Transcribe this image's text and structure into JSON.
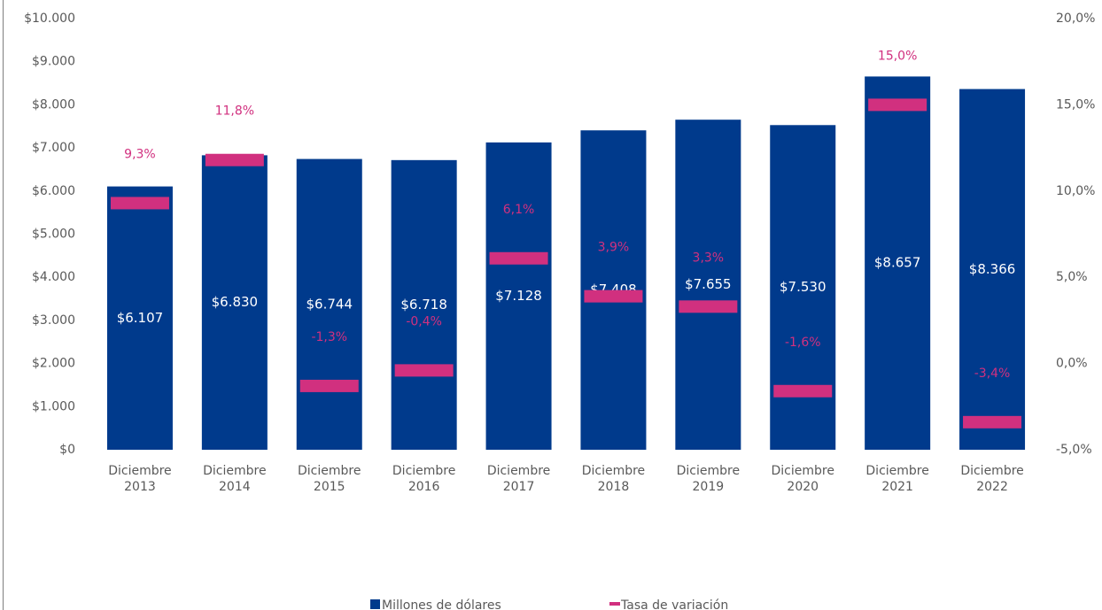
{
  "chart_data": {
    "type": "bar",
    "categories": [
      "Diciembre 2013",
      "Diciembre 2014",
      "Diciembre 2015",
      "Diciembre 2016",
      "Diciembre 2017",
      "Diciembre 2018",
      "Diciembre 2019",
      "Diciembre 2020",
      "Diciembre 2021",
      "Diciembre 2022"
    ],
    "series": [
      {
        "name": "Millones de dólares",
        "color": "#003a8c",
        "type": "bar",
        "values": [
          6107,
          6830,
          6744,
          6718,
          7128,
          7408,
          7655,
          7530,
          8657,
          8366
        ],
        "value_labels": [
          "$6.107",
          "$6.830",
          "$6.744",
          "$6.718",
          "$7.128",
          "$7.408",
          "$7.655",
          "$7.530",
          "$8.657",
          "$8.366"
        ]
      },
      {
        "name": "Tasa de variación",
        "color": "#d1307f",
        "type": "dash",
        "axis": "y2",
        "values": [
          9.3,
          11.8,
          -1.3,
          -0.4,
          6.1,
          3.9,
          3.3,
          -1.6,
          15.0,
          -3.4
        ],
        "value_labels": [
          "9,3%",
          "11,8%",
          "-1,3%",
          "-0,4%",
          "6,1%",
          "3,9%",
          "3,3%",
          "-1,6%",
          "15,0%",
          "-3,4%"
        ]
      }
    ],
    "ylim": [
      0,
      10000
    ],
    "yticks": [
      {
        "value": 0,
        "label": "$0"
      },
      {
        "value": 1000,
        "label": "$1.000"
      },
      {
        "value": 2000,
        "label": "$2.000"
      },
      {
        "value": 3000,
        "label": "$3.000"
      },
      {
        "value": 4000,
        "label": "$4.000"
      },
      {
        "value": 5000,
        "label": "$5.000"
      },
      {
        "value": 6000,
        "label": "$6.000"
      },
      {
        "value": 7000,
        "label": "$7.000"
      },
      {
        "value": 8000,
        "label": "$8.000"
      },
      {
        "value": 9000,
        "label": "$9.000"
      },
      {
        "value": 10000,
        "label": "$10.000"
      }
    ],
    "y2lim": [
      -5,
      20
    ],
    "y2ticks": [
      {
        "value": -5,
        "label": "-5,0%"
      },
      {
        "value": 0,
        "label": "0,0%"
      },
      {
        "value": 5,
        "label": "5,0%"
      },
      {
        "value": 10,
        "label": "10,0%"
      },
      {
        "value": 15,
        "label": "15,0%"
      },
      {
        "value": 20,
        "label": "20,0%"
      }
    ],
    "legend": "bottom"
  }
}
